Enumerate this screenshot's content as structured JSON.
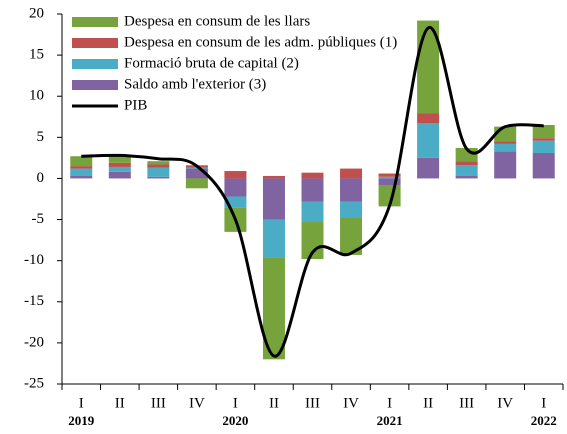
{
  "chart_data": {
    "type": "bar",
    "categories": [
      "I",
      "II",
      "III",
      "IV",
      "I",
      "II",
      "III",
      "IV",
      "I",
      "II",
      "III",
      "IV",
      "I"
    ],
    "year_labels": [
      {
        "index": 0,
        "label": "2019"
      },
      {
        "index": 4,
        "label": "2020"
      },
      {
        "index": 8,
        "label": "2021"
      },
      {
        "index": 12,
        "label": "2022"
      }
    ],
    "series": [
      {
        "name": "Despesa en consum de les llars",
        "color": "#77a33c",
        "values": [
          1.2,
          1.0,
          0.4,
          -1.2,
          -3.0,
          -12.4,
          -4.5,
          -4.6,
          -2.6,
          11.3,
          1.6,
          1.8,
          1.6
        ]
      },
      {
        "name": "Despesa en consum de les adm. públiques (1)",
        "color": "#c0504d",
        "values": [
          0.3,
          0.5,
          0.4,
          0.3,
          0.9,
          0.3,
          0.7,
          1.2,
          0.4,
          1.2,
          0.5,
          0.3,
          0.3
        ]
      },
      {
        "name": "Formació bruta de capital (2)",
        "color": "#4bacc6",
        "values": [
          0.9,
          0.6,
          1.1,
          0.1,
          -1.3,
          -4.6,
          -2.5,
          -1.9,
          0.2,
          4.2,
          1.3,
          0.9,
          1.5
        ]
      },
      {
        "name": "Saldo amb l'exterior  (3)",
        "color": "#8064a2",
        "values": [
          0.3,
          0.8,
          0.2,
          1.2,
          -2.2,
          -5.0,
          -2.8,
          -2.8,
          -0.8,
          2.5,
          0.3,
          3.3,
          3.1
        ]
      },
      {
        "name": "PIB",
        "color": "#000000",
        "type": "line",
        "values": [
          2.7,
          2.8,
          2.4,
          1.5,
          -5.0,
          -21.6,
          -9.0,
          -9.1,
          -3.3,
          18.3,
          3.6,
          6.3,
          6.4
        ]
      }
    ],
    "ylim": [
      -25,
      20
    ],
    "yticks": [
      -25,
      -20,
      -15,
      -10,
      -5,
      0,
      5,
      10,
      15,
      20
    ],
    "grid": false
  }
}
